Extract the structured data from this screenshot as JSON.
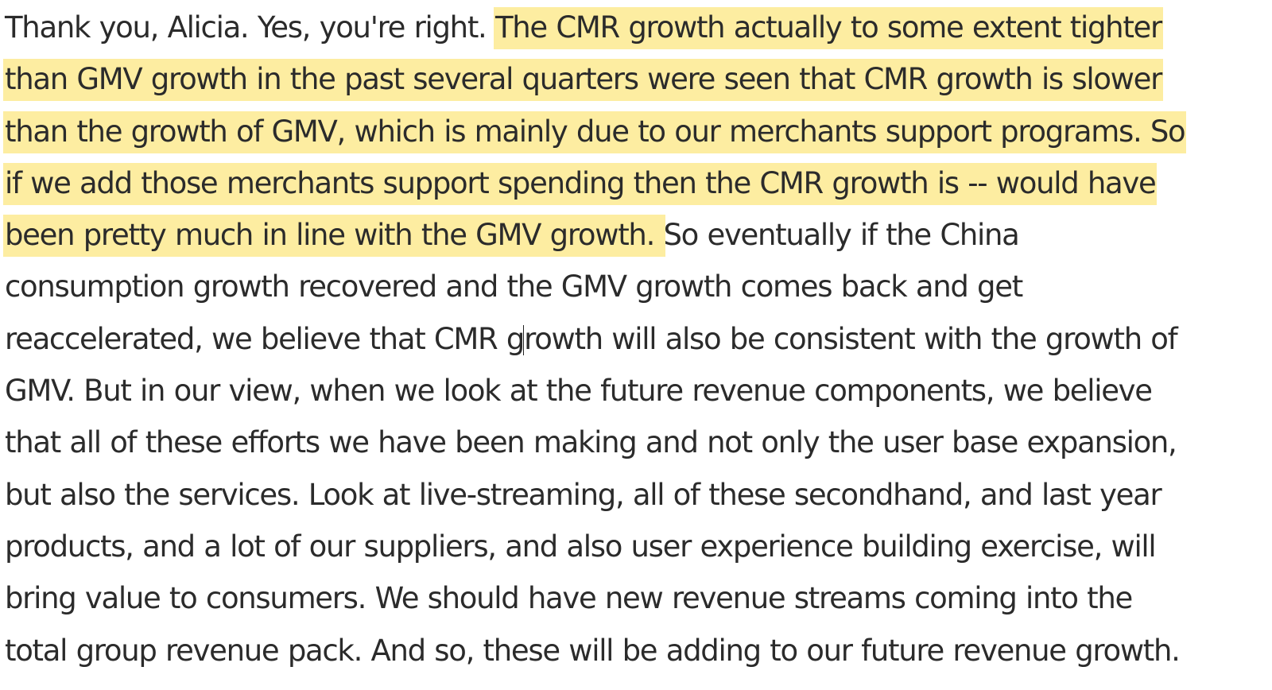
{
  "transcript": {
    "lines": [
      {
        "plain": "Thank you, Alicia. Yes, you're right. ",
        "highlight": "The CMR growth actually to some extent tighter"
      },
      {
        "highlight": "than GMV growth in the past several quarters were seen that CMR growth is slower"
      },
      {
        "highlight": "than the growth of GMV, which is mainly due to our merchants support programs. So"
      },
      {
        "highlight": "if we add those merchants support spending then the CMR growth is -- would have"
      },
      {
        "highlight": "been pretty much in line with the GMV growth. ",
        "plain": "So eventually if the China"
      },
      {
        "plain": "consumption growth recovered and the GMV growth comes back and get"
      },
      {
        "before_cursor": "reaccelerated, we believe that CMR g",
        "after_cursor": "rowth will also be consistent with the growth of"
      },
      {
        "plain": "GMV. But in our view, when we look at the future revenue components, we believe"
      },
      {
        "plain": "that all of these efforts we have been making and not only the user base expansion,"
      },
      {
        "plain": "but also the services. Look at live-streaming, all of these secondhand, and last year"
      },
      {
        "plain": "products, and a lot of our suppliers, and also user experience building exercise, will"
      },
      {
        "plain": "bring value to consumers. We should have new revenue streams coming into the"
      },
      {
        "plain": "total group revenue pack. And so, these will be adding to our future revenue growth."
      }
    ]
  },
  "colors": {
    "text": "#2b2b2b",
    "highlight": "#fdeda1",
    "background": "#ffffff"
  }
}
